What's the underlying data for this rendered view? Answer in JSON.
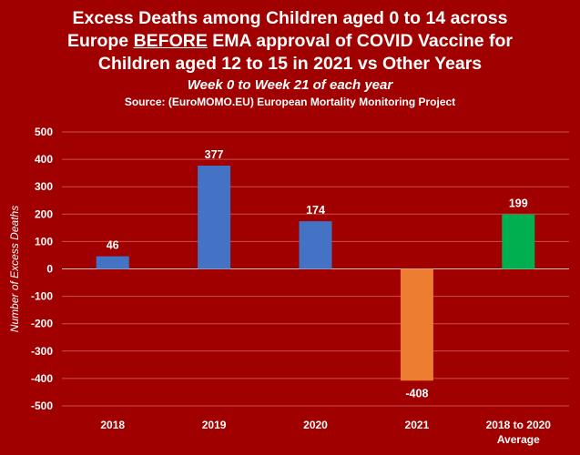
{
  "title": {
    "line1": "Excess Deaths among Children aged 0 to 14 across",
    "line2_before": "Europe ",
    "line2_under": "BEFORE",
    "line2_after": " EMA approval of COVID Vaccine for",
    "line3": "Children aged 12 to 15 in 2021 vs Other Years"
  },
  "subtitle": "Week 0 to Week 21 of each year",
  "source": "Source: (EuroMOMO.EU) European Mortality Monitoring Project",
  "chart_data": {
    "type": "bar",
    "categories": [
      "2018",
      "2019",
      "2020",
      "2021",
      "2018 to 2020\nAverage"
    ],
    "values": [
      46,
      377,
      174,
      -408,
      199
    ],
    "bar_colors": [
      "#4472c4",
      "#4472c4",
      "#4472c4",
      "#ed7d31",
      "#00b050"
    ],
    "ylabel": "Number of Excess Deaths",
    "ylim": [
      -500,
      500
    ],
    "yticks": [
      500,
      400,
      300,
      200,
      100,
      0,
      -100,
      -200,
      -300,
      -400,
      -500
    ],
    "grid": true,
    "colors": {
      "background": "#a10000",
      "gridline": "#c85050",
      "zero_line": "#c8c8c8",
      "text": "#ffffff"
    }
  }
}
